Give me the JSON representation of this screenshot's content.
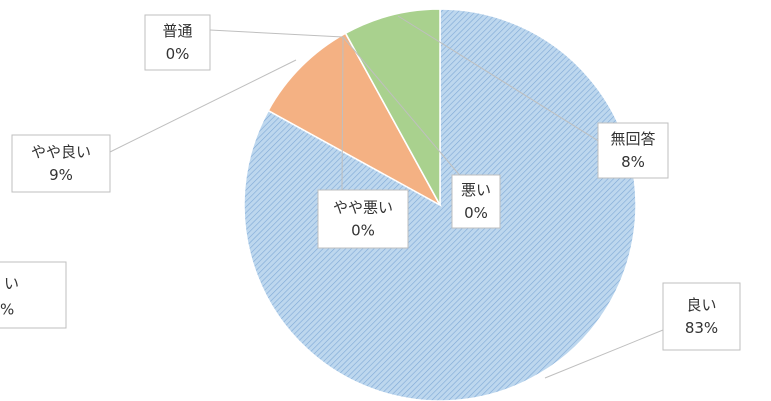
{
  "chart_data": {
    "type": "pie",
    "categories": [
      "良い",
      "やや良い",
      "普通",
      "やや悪い",
      "悪い",
      "無回答"
    ],
    "values": [
      83,
      9,
      0,
      0,
      0,
      8
    ],
    "value_labels": [
      "83%",
      "9%",
      "0%",
      "0%",
      "0%",
      "8%"
    ],
    "colors": [
      "#9dc3e6",
      "#f4b183",
      "#c9c9c9",
      "#ffd966",
      "#8faadc",
      "#a9d18e"
    ],
    "cropped_label": {
      "line1": "い",
      "line2": "%"
    }
  }
}
